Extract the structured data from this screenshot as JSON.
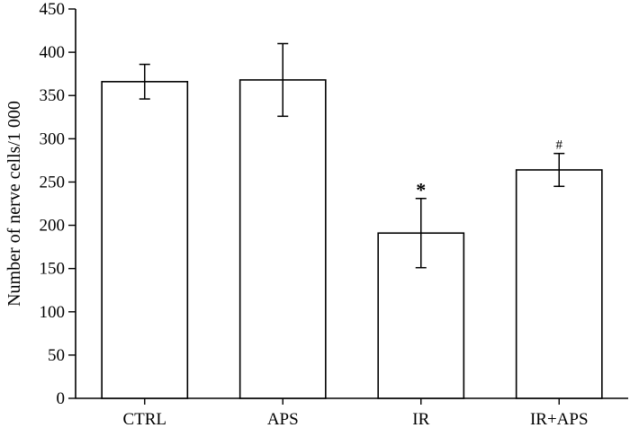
{
  "chart_data": {
    "type": "bar",
    "title": "",
    "xlabel": "",
    "ylabel": "Number of nerve cells/1 000",
    "categories": [
      "CTRL",
      "APS",
      "IR",
      "IR+APS"
    ],
    "values": [
      366,
      368,
      191,
      264
    ],
    "error": [
      20,
      42,
      40,
      19
    ],
    "annotations": [
      "",
      "",
      "*",
      "#"
    ],
    "ylim": [
      0,
      450
    ],
    "yticks": [
      0,
      50,
      100,
      150,
      200,
      250,
      300,
      350,
      400,
      450
    ],
    "grid": false,
    "legend": "none",
    "colors": {
      "bar_fill": "#ffffff",
      "bar_stroke": "#000000"
    }
  }
}
